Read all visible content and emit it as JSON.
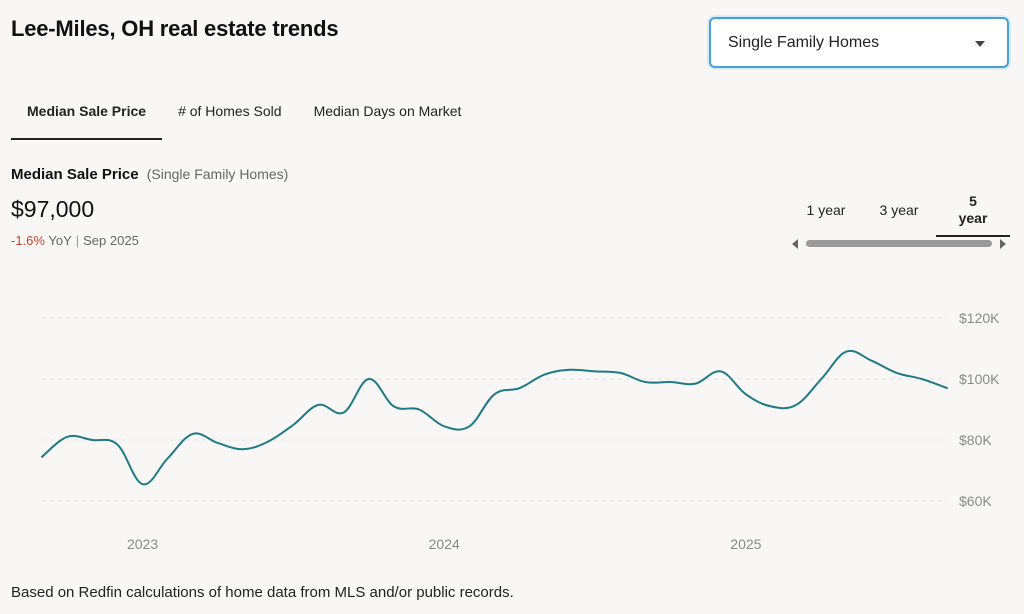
{
  "header": {
    "title": "Lee-Miles, OH real estate trends"
  },
  "home_type_select": {
    "value": "Single Family Homes"
  },
  "tabs": [
    {
      "label": "Median Sale Price",
      "active": true
    },
    {
      "label": "# of Homes Sold",
      "active": false
    },
    {
      "label": "Median Days on Market",
      "active": false
    }
  ],
  "metric": {
    "title": "Median Sale Price",
    "subtitle": "(Single Family Homes)",
    "value": "$97,000",
    "change": "-1.6%",
    "change_label": "YoY",
    "separator": "|",
    "period": "Sep 2025"
  },
  "ranges": [
    {
      "label": "1 year",
      "active": false
    },
    {
      "label": "3 year",
      "active": false
    },
    {
      "label": "5 year",
      "active": true
    }
  ],
  "colors": {
    "line": "#1f7a85",
    "negative": "#c8452b",
    "grid": "#e3e0de",
    "axis_text": "#8a8a8a"
  },
  "chart_data": {
    "type": "line",
    "title": "",
    "xlabel": "",
    "ylabel": "",
    "y_ticks": [
      {
        "value": 60000,
        "label": "$60K"
      },
      {
        "value": 80000,
        "label": "$80K"
      },
      {
        "value": 100000,
        "label": "$100K"
      },
      {
        "value": 120000,
        "label": "$120K"
      }
    ],
    "x_ticks": [
      {
        "value": "2023-01",
        "label": "2023"
      },
      {
        "value": "2024-01",
        "label": "2024"
      },
      {
        "value": "2025-01",
        "label": "2025"
      }
    ],
    "ylim": [
      60000,
      120000
    ],
    "xlim": [
      "2022-09",
      "2025-09"
    ],
    "grid": true,
    "series": [
      {
        "x": [
          "2022-09",
          "2022-10",
          "2022-11",
          "2022-12",
          "2023-01",
          "2023-02",
          "2023-03",
          "2023-04",
          "2023-05",
          "2023-06",
          "2023-07",
          "2023-08",
          "2023-09",
          "2023-10",
          "2023-11",
          "2023-12",
          "2024-01",
          "2024-02",
          "2024-03",
          "2024-04",
          "2024-05",
          "2024-06",
          "2024-07",
          "2024-08",
          "2024-09",
          "2024-10",
          "2024-11",
          "2024-12",
          "2025-01",
          "2025-02",
          "2025-03",
          "2025-04",
          "2025-05",
          "2025-06",
          "2025-07",
          "2025-08",
          "2025-09"
        ],
        "values": [
          74500,
          81000,
          80000,
          78500,
          65500,
          74000,
          82000,
          79000,
          77000,
          79500,
          85000,
          91500,
          89000,
          100000,
          91000,
          90000,
          84500,
          84500,
          95000,
          97000,
          101500,
          103000,
          102500,
          102000,
          99000,
          99000,
          98500,
          102500,
          95000,
          91000,
          91500,
          100000,
          109000,
          106000,
          102000,
          100000,
          97000
        ]
      }
    ]
  },
  "footnote": "Based on Redfin calculations of home data from MLS and/or public records."
}
